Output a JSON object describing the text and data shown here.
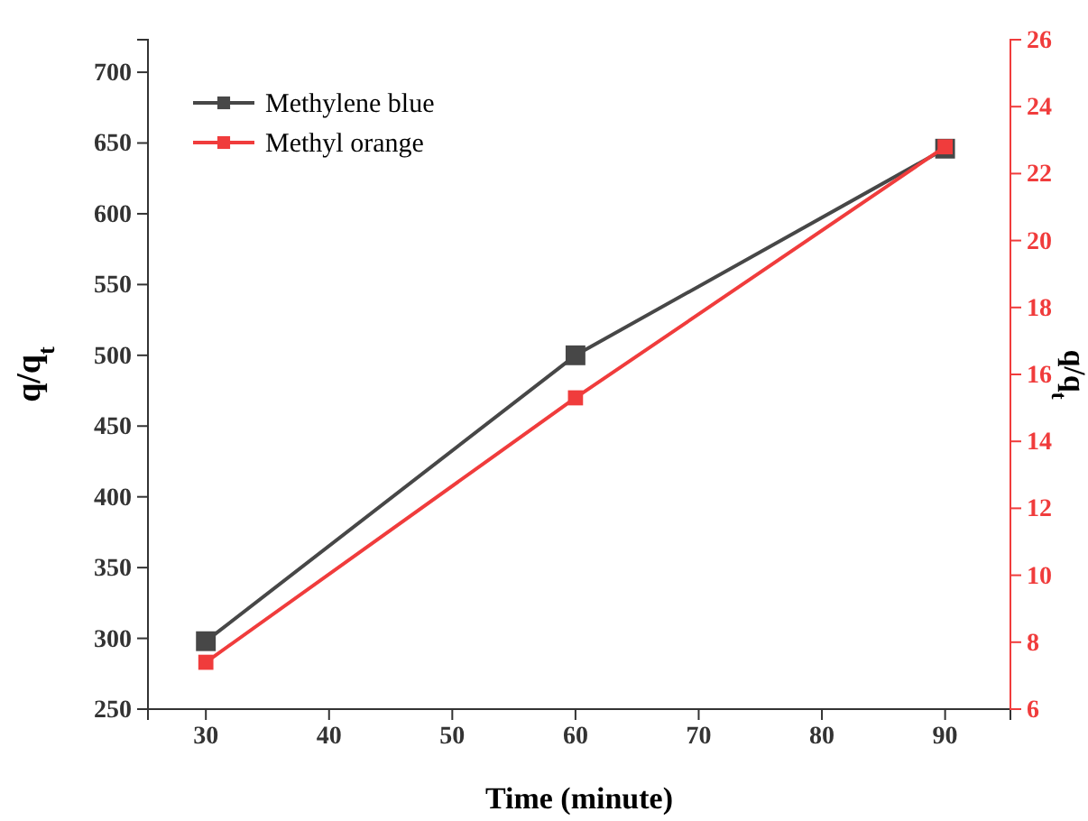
{
  "chart_data": {
    "type": "line",
    "xlabel": "Time (minute)",
    "ylabel": "q/q$_{t}$",
    "y2label": "q/q$_{t}$",
    "x": [
      30,
      60,
      90
    ],
    "series": [
      {
        "name": "Methylene blue",
        "color": "#474747",
        "values": [
          298,
          500,
          646
        ]
      },
      {
        "name": "Methyl orange",
        "color": "#f03c3c",
        "values": [
          7.4,
          15.3,
          22.8
        ],
        "axis": "y2"
      }
    ],
    "xlim": [
      25.3,
      95.3
    ],
    "xticks": [
      30,
      40,
      50,
      60,
      70,
      80,
      90
    ],
    "ylim": [
      250,
      723
    ],
    "yticks": [
      250,
      300,
      350,
      400,
      450,
      500,
      550,
      600,
      650,
      700
    ],
    "y2lim": [
      6,
      26
    ],
    "y2ticks": [
      6,
      8,
      10,
      12,
      14,
      16,
      18,
      20,
      22,
      24,
      26
    ],
    "marker": "square",
    "legend": "top left",
    "grid": false
  }
}
